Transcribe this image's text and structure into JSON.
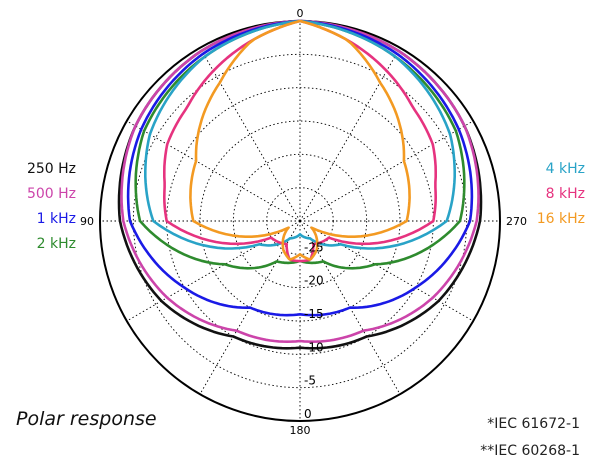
{
  "caption": "Polar response",
  "footnotes": [
    "*IEC 61672-1",
    "**IEC 60268-1"
  ],
  "chart_data": {
    "type": "polar",
    "angle_labels": [
      {
        "deg": 0,
        "text": "0"
      },
      {
        "deg": 90,
        "text": "90"
      },
      {
        "deg": 180,
        "text": "180"
      },
      {
        "deg": 270,
        "text": "270"
      }
    ],
    "rings": [
      0,
      -5,
      -10,
      -15,
      -20,
      -25
    ],
    "ring_labels": [
      "0",
      "-5",
      "-10",
      "-15",
      "-20",
      "-25"
    ],
    "r_min": -30,
    "r_max": 0,
    "spoke_step_deg": 30,
    "grid": true,
    "series": [
      {
        "name": "250 Hz",
        "color": "#111111",
        "angles": [
          0,
          30,
          60,
          90,
          120,
          150,
          180
        ],
        "values": [
          0,
          -0.5,
          -1.5,
          -3,
          -6,
          -10,
          -11
        ]
      },
      {
        "name": "500 Hz",
        "color": "#cc44aa",
        "angles": [
          0,
          30,
          60,
          90,
          120,
          150,
          180
        ],
        "values": [
          0,
          -0.5,
          -1.5,
          -3.5,
          -7,
          -11,
          -12
        ]
      },
      {
        "name": "1 kHz",
        "color": "#1a1ae6",
        "angles": [
          0,
          30,
          60,
          90,
          120,
          150,
          180
        ],
        "values": [
          0,
          -1,
          -2.5,
          -4.5,
          -10,
          -15,
          -16
        ]
      },
      {
        "name": "2 kHz",
        "color": "#2e8b2e",
        "angles": [
          0,
          30,
          60,
          90,
          120,
          150,
          180
        ],
        "values": [
          0,
          -1.5,
          -3,
          -6,
          -17,
          -23,
          -24
        ]
      },
      {
        "name": "4 kHz",
        "color": "#29a3c7",
        "angles": [
          0,
          30,
          60,
          90,
          120,
          150,
          180
        ],
        "values": [
          0,
          -1.5,
          -4,
          -8,
          -23,
          -27,
          -28
        ]
      },
      {
        "name": "8 kHz",
        "color": "#e6337f",
        "angles": [
          0,
          15,
          30,
          45,
          60,
          75,
          90,
          120,
          150,
          165,
          180
        ],
        "values": [
          0,
          -2,
          -4,
          -6,
          -7,
          -9,
          -10,
          -25,
          -26,
          -24,
          -24
        ]
      },
      {
        "name": "16 kHz",
        "color": "#f39a22",
        "angles": [
          0,
          15,
          30,
          45,
          60,
          75,
          90,
          120,
          150,
          165,
          180
        ],
        "values": [
          0,
          -2,
          -6,
          -9,
          -12,
          -13,
          -14,
          -28,
          -25,
          -24,
          -25
        ]
      }
    ]
  }
}
